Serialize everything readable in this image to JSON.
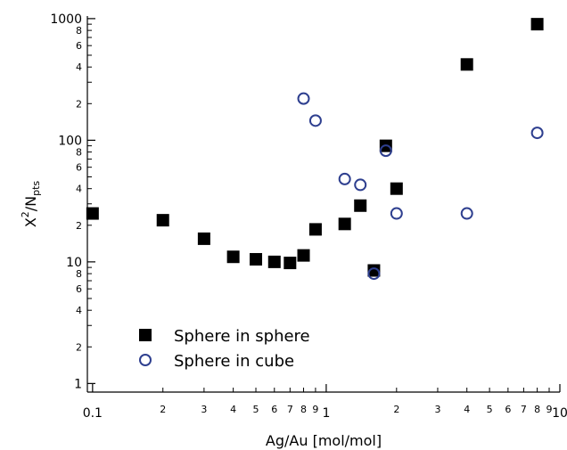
{
  "chart_data": {
    "type": "scatter",
    "xlabel": "Ag/Au [mol/mol]",
    "ylabel": "χ²/N_pts",
    "ylabel_parts": {
      "base": "X",
      "sup": "2",
      "slash": "/N",
      "sub": "pts"
    },
    "x_scale": "log",
    "y_scale": "log",
    "xlim": [
      0.095,
      10
    ],
    "ylim": [
      0.85,
      1050
    ],
    "grid": false,
    "legend_position": "lower-left",
    "x_major_ticks": [
      {
        "value": 0.1,
        "label": "0.1"
      },
      {
        "value": 1,
        "label": "1"
      },
      {
        "value": 10,
        "label": "10"
      }
    ],
    "x_minor_ticks": [
      {
        "value": 0.2,
        "label": "2"
      },
      {
        "value": 0.3,
        "label": "3"
      },
      {
        "value": 0.4,
        "label": "4"
      },
      {
        "value": 0.5,
        "label": "5"
      },
      {
        "value": 0.6,
        "label": "6"
      },
      {
        "value": 0.7,
        "label": "7"
      },
      {
        "value": 0.8,
        "label": "8"
      },
      {
        "value": 0.9,
        "label": "9"
      },
      {
        "value": 2,
        "label": "2"
      },
      {
        "value": 3,
        "label": "3"
      },
      {
        "value": 4,
        "label": "4"
      },
      {
        "value": 5,
        "label": "5"
      },
      {
        "value": 6,
        "label": "6"
      },
      {
        "value": 7,
        "label": "7"
      },
      {
        "value": 8,
        "label": "8"
      },
      {
        "value": 9,
        "label": "9"
      }
    ],
    "y_major_ticks": [
      {
        "value": 1,
        "label": "1"
      },
      {
        "value": 10,
        "label": "10"
      },
      {
        "value": 100,
        "label": "100"
      },
      {
        "value": 1000,
        "label": "1000"
      }
    ],
    "y_minor_ticks": [
      {
        "value": 2,
        "label": "2"
      },
      {
        "value": 3,
        "label": ""
      },
      {
        "value": 4,
        "label": "4"
      },
      {
        "value": 5,
        "label": ""
      },
      {
        "value": 6,
        "label": "6"
      },
      {
        "value": 7,
        "label": ""
      },
      {
        "value": 8,
        "label": "8"
      },
      {
        "value": 9,
        "label": ""
      },
      {
        "value": 20,
        "label": "2"
      },
      {
        "value": 30,
        "label": ""
      },
      {
        "value": 40,
        "label": "4"
      },
      {
        "value": 50,
        "label": ""
      },
      {
        "value": 60,
        "label": "6"
      },
      {
        "value": 70,
        "label": ""
      },
      {
        "value": 80,
        "label": "8"
      },
      {
        "value": 90,
        "label": ""
      },
      {
        "value": 200,
        "label": "2"
      },
      {
        "value": 300,
        "label": ""
      },
      {
        "value": 400,
        "label": "4"
      },
      {
        "value": 500,
        "label": ""
      },
      {
        "value": 600,
        "label": "6"
      },
      {
        "value": 700,
        "label": ""
      },
      {
        "value": 800,
        "label": "8"
      },
      {
        "value": 900,
        "label": ""
      }
    ],
    "series": [
      {
        "name": "Sphere in sphere",
        "marker": "filled-square",
        "color": "#000000",
        "points": [
          {
            "x": 0.1,
            "y": 25
          },
          {
            "x": 0.2,
            "y": 22
          },
          {
            "x": 0.3,
            "y": 15.5
          },
          {
            "x": 0.4,
            "y": 11
          },
          {
            "x": 0.5,
            "y": 10.5
          },
          {
            "x": 0.6,
            "y": 10
          },
          {
            "x": 0.7,
            "y": 9.8
          },
          {
            "x": 0.8,
            "y": 11.3
          },
          {
            "x": 0.9,
            "y": 18.5
          },
          {
            "x": 1.2,
            "y": 20.5
          },
          {
            "x": 1.4,
            "y": 29
          },
          {
            "x": 1.6,
            "y": 8.5
          },
          {
            "x": 1.8,
            "y": 90
          },
          {
            "x": 2.0,
            "y": 40
          },
          {
            "x": 4.0,
            "y": 420
          },
          {
            "x": 8.0,
            "y": 900
          }
        ]
      },
      {
        "name": "Sphere in cube",
        "marker": "open-circle",
        "color": "#2e3f8f",
        "points": [
          {
            "x": 0.8,
            "y": 220
          },
          {
            "x": 0.9,
            "y": 145
          },
          {
            "x": 1.2,
            "y": 48
          },
          {
            "x": 1.4,
            "y": 43
          },
          {
            "x": 1.6,
            "y": 8
          },
          {
            "x": 1.8,
            "y": 82
          },
          {
            "x": 2.0,
            "y": 25
          },
          {
            "x": 4.0,
            "y": 25
          },
          {
            "x": 8.0,
            "y": 115
          }
        ]
      }
    ]
  }
}
